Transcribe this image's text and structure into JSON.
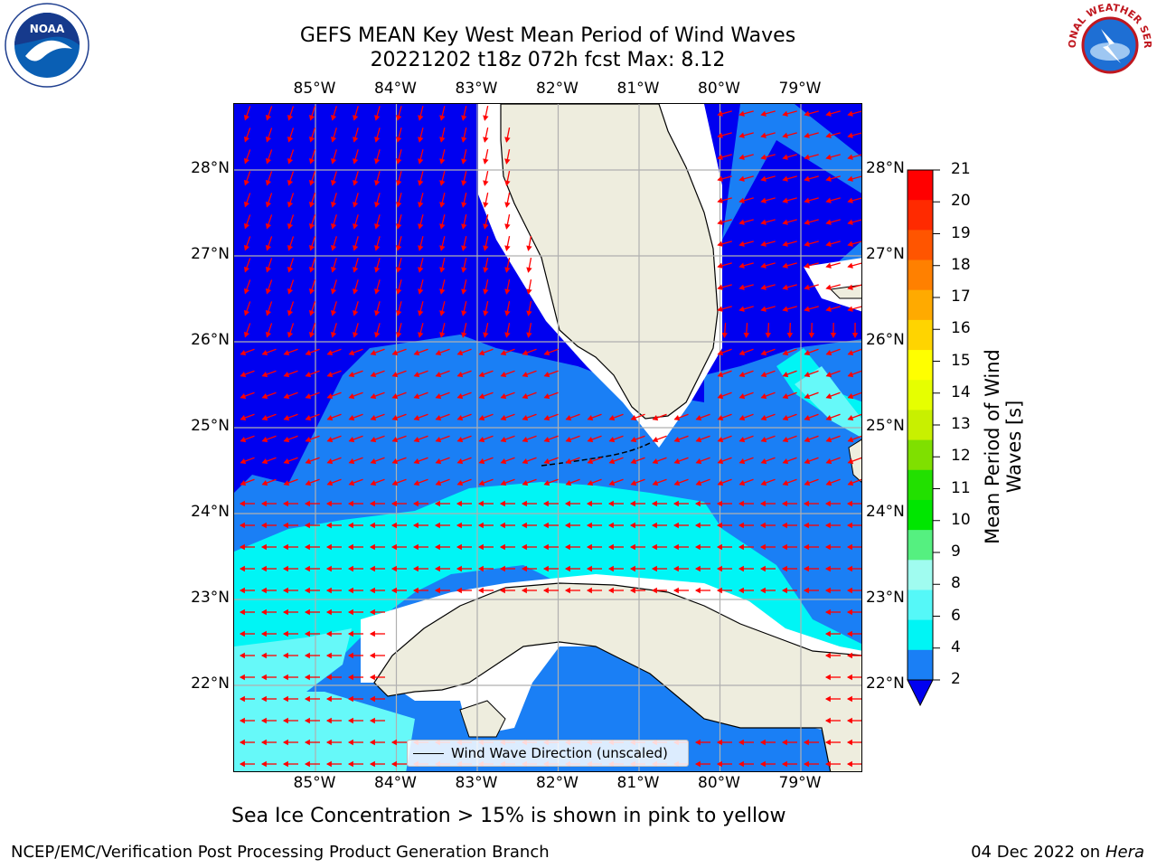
{
  "title": {
    "line1": "GEFS MEAN Key West Mean Period of Wind Waves",
    "line2": "20221202 t18z 072h fcst   Max: 8.12"
  },
  "logos": {
    "left": "NOAA",
    "right": "NATIONAL WEATHER SERVICE"
  },
  "map": {
    "lon_labels": [
      "85°W",
      "84°W",
      "83°W",
      "82°W",
      "81°W",
      "80°W",
      "79°W"
    ],
    "lat_labels": [
      "28°N",
      "27°N",
      "26°N",
      "25°N",
      "24°N",
      "23°N",
      "22°N"
    ],
    "legend_label": "Wind Wave Direction (unscaled)",
    "colors": {
      "land": "#eeedde",
      "deep_blue": "#0000f0",
      "mid_blue": "#1a7ff5",
      "cyan": "#00f5f5",
      "light_cyan": "#66f9f9",
      "arrows": "#ff0000"
    }
  },
  "colorbar": {
    "title": "Mean Period of Wind Waves [s]",
    "ticks": [
      "21",
      "20",
      "19",
      "18",
      "17",
      "16",
      "15",
      "14",
      "13",
      "12",
      "11",
      "10",
      "9",
      "8",
      "6",
      "4",
      "2"
    ],
    "colors": [
      "#ff0000",
      "#ff2a00",
      "#ff5500",
      "#ff8000",
      "#ffaa00",
      "#ffd400",
      "#ffff00",
      "#e6ff00",
      "#c8f000",
      "#7fe000",
      "#22e000",
      "#00e600",
      "#55f080",
      "#a0fcf0",
      "#55f8f8",
      "#00f5f5",
      "#1a7ff5",
      "#0000f0"
    ]
  },
  "footer": {
    "subtitle": "Sea Ice Concentration > 15% is shown in pink to yellow",
    "left": "NCEP/EMC/Verification Post Processing Product Generation Branch",
    "right_date": "04 Dec 2022 on",
    "right_host": "Hera"
  }
}
